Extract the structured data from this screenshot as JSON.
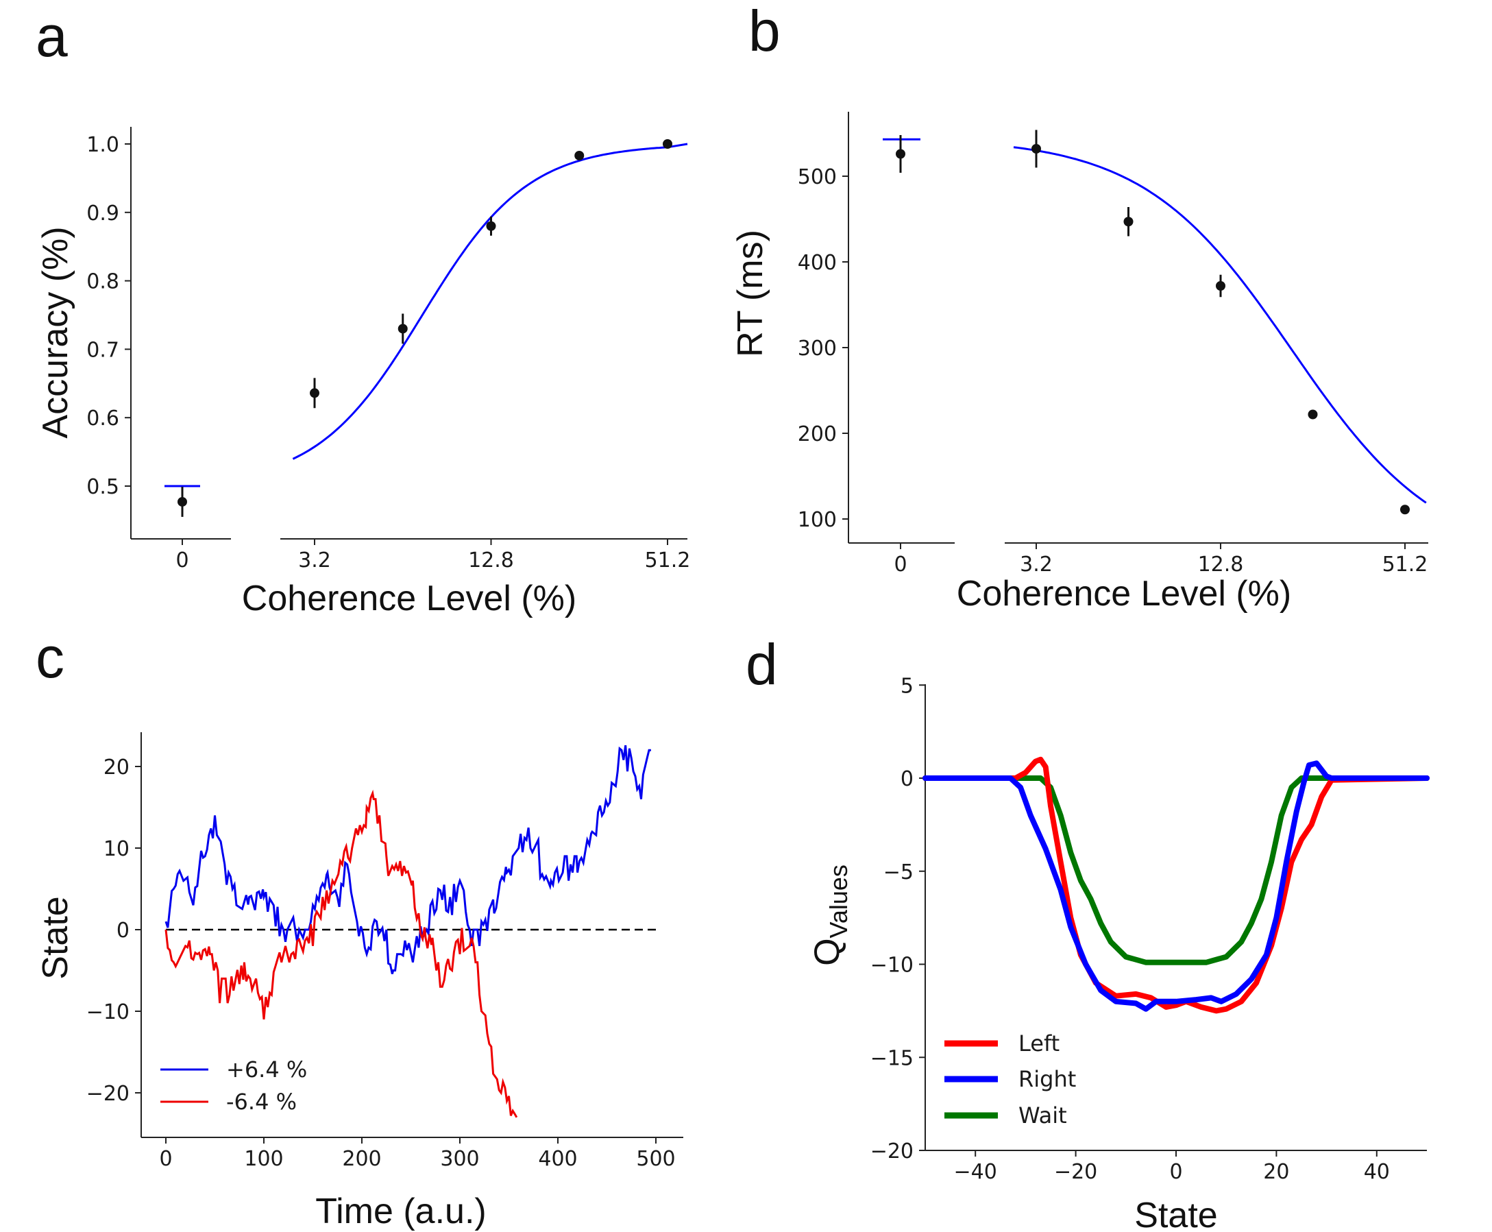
{
  "panel_labels": [
    "a",
    "b",
    "c",
    "d"
  ],
  "chart_data": [
    {
      "type": "scatter",
      "panel": "a",
      "xlabel": "Coherence Level (%)",
      "ylabel": "Accuracy (%)",
      "x_ticks": [
        "0",
        "3.2",
        "12.8",
        "51.2"
      ],
      "y_ticks": [
        "0.5",
        "0.6",
        "0.7",
        "0.8",
        "0.9",
        "1.0"
      ],
      "ylim": [
        0.44,
        1.03
      ],
      "x_scale": "log2",
      "zero_point": {
        "x": 0,
        "mean": 0.477,
        "err": 0.022,
        "fit": 0.5
      },
      "points": [
        {
          "x": 3.2,
          "mean": 0.636,
          "err": 0.022
        },
        {
          "x": 6.4,
          "mean": 0.73,
          "err": 0.022
        },
        {
          "x": 12.8,
          "mean": 0.88,
          "err": 0.014
        },
        {
          "x": 25.6,
          "mean": 0.983,
          "err": 0.005
        },
        {
          "x": 51.2,
          "mean": 1.0,
          "err": 0.002
        }
      ],
      "fit_curve": {
        "x": [
          2.7,
          51.2
        ],
        "form": "logistic",
        "min": 0.5,
        "max": 1.0
      }
    },
    {
      "type": "scatter",
      "panel": "b",
      "xlabel": "Coherence Level (%)",
      "ylabel": "RT (ms)",
      "x_ticks": [
        "0",
        "3.2",
        "12.8",
        "51.2"
      ],
      "y_ticks": [
        "100",
        "200",
        "300",
        "400",
        "500"
      ],
      "ylim": [
        75,
        575
      ],
      "x_scale": "log2",
      "zero_point": {
        "x": 0,
        "mean": 526,
        "err": 22,
        "fit": 543
      },
      "points": [
        {
          "x": 3.2,
          "mean": 532,
          "err": 22
        },
        {
          "x": 6.4,
          "mean": 447,
          "err": 17
        },
        {
          "x": 12.8,
          "mean": 372,
          "err": 13
        },
        {
          "x": 25.6,
          "mean": 222,
          "err": 5
        },
        {
          "x": 51.2,
          "mean": 111,
          "err": 4
        }
      ],
      "fit_curve": {
        "x": [
          2.7,
          60
        ],
        "form": "logistic",
        "min": 50,
        "max": 545
      }
    },
    {
      "type": "line",
      "panel": "c",
      "xlabel": "Time (a.u.)",
      "ylabel": "State",
      "x_ticks": [
        "0",
        "100",
        "200",
        "300",
        "400",
        "500"
      ],
      "y_ticks": [
        "20",
        "10",
        "0",
        "−10",
        "−20"
      ],
      "xlim": [
        -25,
        525
      ],
      "ylim": [
        -25,
        24
      ],
      "reference_line": {
        "y": 0,
        "style": "dashed",
        "color": "#000000"
      },
      "series": [
        {
          "name": "+6.4 %",
          "color": "#0000ee",
          "anchors": [
            [
              0,
              0
            ],
            [
              8,
              5
            ],
            [
              18,
              7
            ],
            [
              28,
              3
            ],
            [
              40,
              10
            ],
            [
              50,
              14
            ],
            [
              60,
              7
            ],
            [
              72,
              4
            ],
            [
              85,
              3
            ],
            [
              100,
              4
            ],
            [
              110,
              2
            ],
            [
              120,
              -1
            ],
            [
              128,
              1
            ],
            [
              140,
              -2
            ],
            [
              150,
              3
            ],
            [
              165,
              7
            ],
            [
              175,
              3
            ],
            [
              185,
              7
            ],
            [
              195,
              1
            ],
            [
              205,
              -3
            ],
            [
              215,
              1
            ],
            [
              225,
              -2
            ],
            [
              232,
              -6
            ],
            [
              240,
              -2
            ],
            [
              252,
              -3
            ],
            [
              262,
              0
            ],
            [
              278,
              4
            ],
            [
              290,
              3
            ],
            [
              300,
              7
            ],
            [
              310,
              -1
            ],
            [
              322,
              -1
            ],
            [
              335,
              3
            ],
            [
              348,
              7
            ],
            [
              360,
              9
            ],
            [
              368,
              12
            ],
            [
              380,
              9
            ],
            [
              393,
              5
            ],
            [
              405,
              8
            ],
            [
              420,
              8
            ],
            [
              435,
              11
            ],
            [
              445,
              15
            ],
            [
              455,
              17
            ],
            [
              465,
              21
            ],
            [
              475,
              20
            ],
            [
              485,
              17
            ],
            [
              495,
              22
            ]
          ]
        },
        {
          "name": "-6.4 %",
          "color": "#ee0000",
          "anchors": [
            [
              0,
              0
            ],
            [
              8,
              -5
            ],
            [
              20,
              -2
            ],
            [
              32,
              -3
            ],
            [
              45,
              -2
            ],
            [
              55,
              -7
            ],
            [
              65,
              -7
            ],
            [
              80,
              -5
            ],
            [
              92,
              -7
            ],
            [
              100,
              -10
            ],
            [
              108,
              -7
            ],
            [
              118,
              -3
            ],
            [
              128,
              -3
            ],
            [
              138,
              -2
            ],
            [
              150,
              0
            ],
            [
              160,
              3
            ],
            [
              170,
              5
            ],
            [
              180,
              8
            ],
            [
              190,
              11
            ],
            [
              200,
              12
            ],
            [
              205,
              14
            ],
            [
              212,
              16
            ],
            [
              218,
              13
            ],
            [
              225,
              9
            ],
            [
              235,
              7
            ],
            [
              245,
              8
            ],
            [
              252,
              5
            ],
            [
              258,
              1
            ],
            [
              265,
              -1
            ],
            [
              272,
              -2
            ],
            [
              282,
              -7
            ],
            [
              292,
              -3
            ],
            [
              300,
              -2
            ],
            [
              310,
              -1
            ],
            [
              318,
              -5
            ],
            [
              322,
              -9
            ],
            [
              330,
              -14
            ],
            [
              336,
              -18
            ],
            [
              342,
              -19
            ],
            [
              348,
              -21
            ],
            [
              358,
              -23
            ]
          ]
        }
      ]
    },
    {
      "type": "line",
      "panel": "d",
      "xlabel": "State",
      "ylabel": "Q",
      "ylabel_sub": "Values",
      "x_ticks": [
        "−40",
        "−20",
        "0",
        "20",
        "40"
      ],
      "y_ticks": [
        "5",
        "0",
        "−5",
        "−10",
        "−15",
        "−20"
      ],
      "xlim": [
        -50,
        50
      ],
      "ylim": [
        -20,
        5
      ],
      "series": [
        {
          "name": "Left",
          "color": "#ff0000",
          "anchors": [
            [
              -50,
              0
            ],
            [
              -32,
              0
            ],
            [
              -30,
              0.3
            ],
            [
              -28,
              0.9
            ],
            [
              -27,
              1.0
            ],
            [
              -26,
              0.6
            ],
            [
              -25,
              -1.5
            ],
            [
              -23,
              -4.5
            ],
            [
              -21,
              -7.5
            ],
            [
              -19,
              -9.5
            ],
            [
              -16,
              -11.0
            ],
            [
              -12,
              -11.7
            ],
            [
              -8,
              -11.6
            ],
            [
              -5,
              -11.8
            ],
            [
              -2,
              -12.3
            ],
            [
              0,
              -12.2
            ],
            [
              2,
              -12.0
            ],
            [
              5,
              -12.3
            ],
            [
              8,
              -12.5
            ],
            [
              10,
              -12.4
            ],
            [
              13,
              -12.0
            ],
            [
              16,
              -11.0
            ],
            [
              19,
              -9.0
            ],
            [
              21,
              -7.0
            ],
            [
              23,
              -4.5
            ],
            [
              25,
              -3.3
            ],
            [
              27,
              -2.5
            ],
            [
              29,
              -1.0
            ],
            [
              31,
              -0.1
            ],
            [
              50,
              0
            ]
          ]
        },
        {
          "name": "Right",
          "color": "#0000ff",
          "anchors": [
            [
              -50,
              0
            ],
            [
              -33,
              0
            ],
            [
              -31,
              -0.5
            ],
            [
              -29,
              -2.0
            ],
            [
              -26,
              -3.8
            ],
            [
              -23,
              -6.0
            ],
            [
              -21,
              -8.0
            ],
            [
              -18,
              -10.0
            ],
            [
              -15,
              -11.4
            ],
            [
              -12,
              -12.0
            ],
            [
              -8,
              -12.1
            ],
            [
              -6,
              -12.4
            ],
            [
              -4,
              -12.0
            ],
            [
              0,
              -12.0
            ],
            [
              4,
              -11.9
            ],
            [
              7,
              -11.8
            ],
            [
              9,
              -12.0
            ],
            [
              12,
              -11.6
            ],
            [
              15,
              -10.8
            ],
            [
              18,
              -9.5
            ],
            [
              20,
              -7.5
            ],
            [
              22,
              -4.5
            ],
            [
              24,
              -1.8
            ],
            [
              25.5,
              -0.2
            ],
            [
              26.5,
              0.7
            ],
            [
              28,
              0.8
            ],
            [
              30,
              0.1
            ],
            [
              31,
              0
            ],
            [
              50,
              0
            ]
          ]
        },
        {
          "name": "Wait",
          "color": "#007700",
          "anchors": [
            [
              -50,
              0
            ],
            [
              -27,
              0
            ],
            [
              -25,
              -0.5
            ],
            [
              -23,
              -2.0
            ],
            [
              -21,
              -4.0
            ],
            [
              -19,
              -5.5
            ],
            [
              -17,
              -6.5
            ],
            [
              -15,
              -7.8
            ],
            [
              -13,
              -8.8
            ],
            [
              -10,
              -9.6
            ],
            [
              -6,
              -9.9
            ],
            [
              0,
              -9.9
            ],
            [
              6,
              -9.9
            ],
            [
              10,
              -9.6
            ],
            [
              13,
              -8.8
            ],
            [
              15,
              -7.8
            ],
            [
              17,
              -6.5
            ],
            [
              19,
              -4.5
            ],
            [
              21,
              -2.0
            ],
            [
              23,
              -0.5
            ],
            [
              25,
              0
            ],
            [
              50,
              0
            ]
          ]
        }
      ]
    }
  ]
}
